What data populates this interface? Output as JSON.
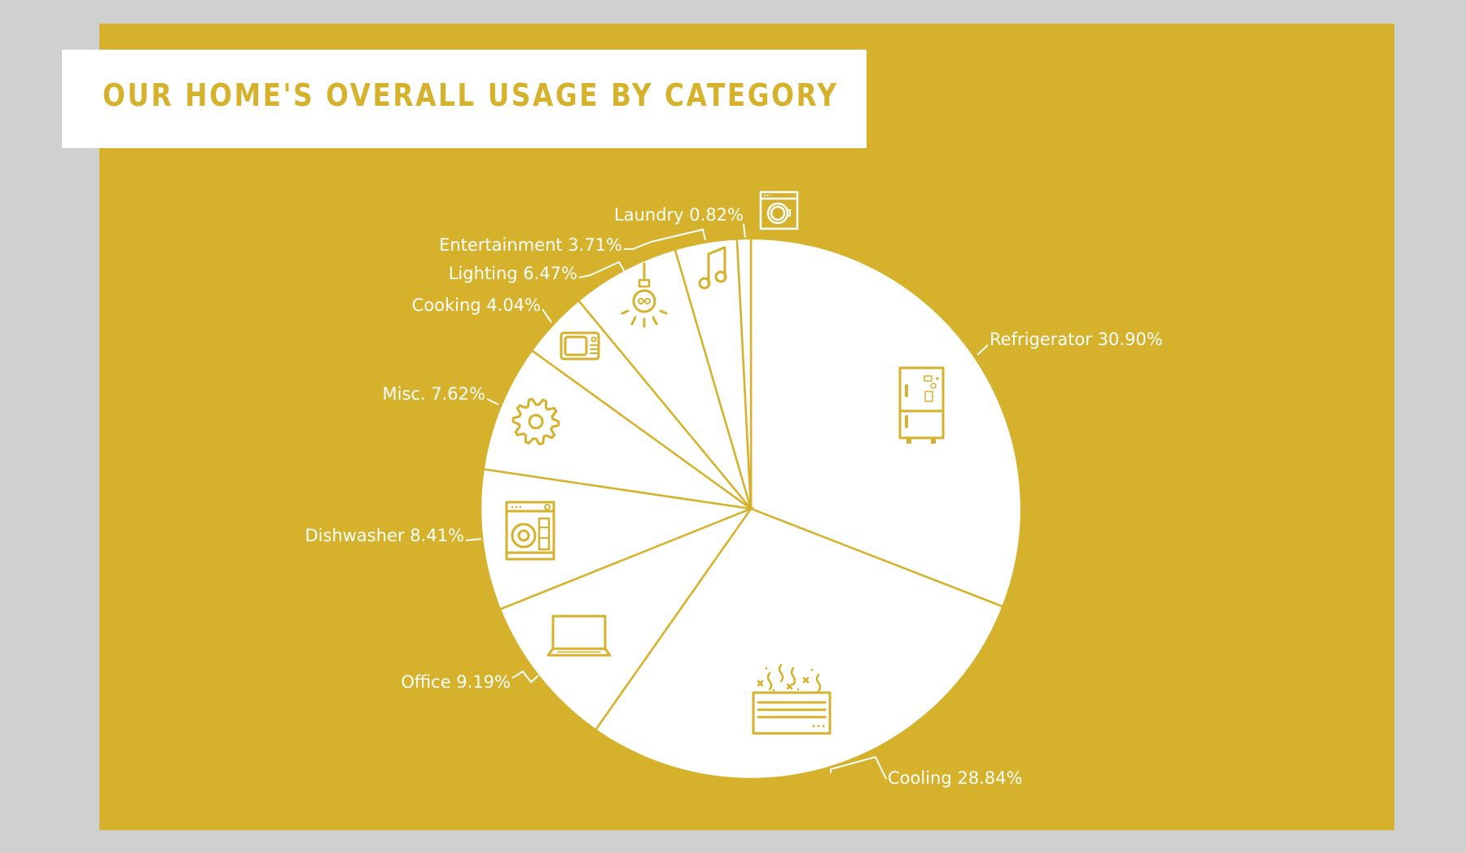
{
  "title": "OUR HOME'S OVERALL USAGE BY CATEGORY",
  "colors": {
    "background": "#d0d0d0",
    "panel": "#d6b22c",
    "slice": "#ffffff",
    "accent": "#d6b22c"
  },
  "chart_data": {
    "type": "pie",
    "title": "OUR HOME'S OVERALL USAGE BY CATEGORY",
    "start_angle_deg": -90,
    "direction": "clockwise",
    "unit": "%",
    "categories": [
      "Refrigerator",
      "Cooling",
      "Office",
      "Dishwasher",
      "Misc.",
      "Cooking",
      "Lighting",
      "Entertainment",
      "Laundry"
    ],
    "values": [
      30.9,
      28.84,
      9.19,
      8.41,
      7.62,
      4.04,
      6.47,
      3.71,
      0.82
    ],
    "slices": [
      {
        "name": "Refrigerator",
        "value": 30.9,
        "label": "Refrigerator 30.90%",
        "icon": "refrigerator-icon"
      },
      {
        "name": "Cooling",
        "value": 28.84,
        "label": "Cooling 28.84%",
        "icon": "air-conditioner-icon"
      },
      {
        "name": "Office",
        "value": 9.19,
        "label": "Office 9.19%",
        "icon": "laptop-icon"
      },
      {
        "name": "Dishwasher",
        "value": 8.41,
        "label": "Dishwasher 8.41%",
        "icon": "dishwasher-icon"
      },
      {
        "name": "Misc.",
        "value": 7.62,
        "label": "Misc. 7.62%",
        "icon": "gear-icon"
      },
      {
        "name": "Cooking",
        "value": 4.04,
        "label": "Cooking 4.04%",
        "icon": "microwave-icon"
      },
      {
        "name": "Lighting",
        "value": 6.47,
        "label": "Lighting 6.47%",
        "icon": "light-bulb-icon"
      },
      {
        "name": "Entertainment",
        "value": 3.71,
        "label": "Entertainment 3.71%",
        "icon": "music-note-icon"
      },
      {
        "name": "Laundry",
        "value": 0.82,
        "label": "Laundry 0.82%",
        "icon": "washing-machine-icon"
      }
    ],
    "legend": "none (direct labels)"
  }
}
